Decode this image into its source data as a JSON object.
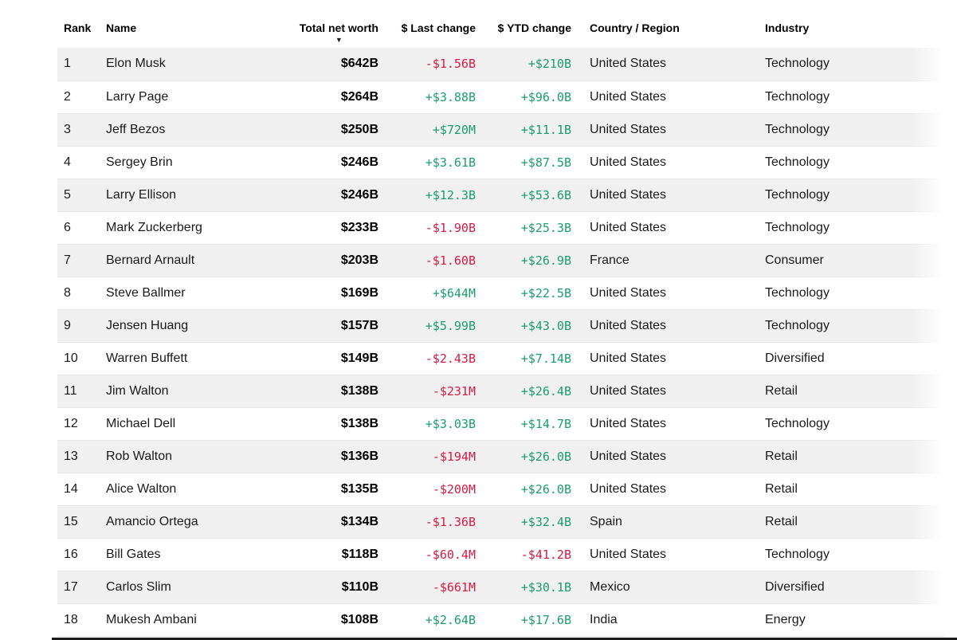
{
  "table": {
    "headers": {
      "rank": "Rank",
      "name": "Name",
      "net_worth": "Total net worth",
      "last_change": "$ Last change",
      "ytd_change": "$ YTD change",
      "country": "Country / Region",
      "industry": "Industry"
    },
    "sort": {
      "column": "net_worth",
      "direction": "desc",
      "icon": "▼"
    },
    "rows": [
      {
        "rank": "1",
        "name": "Elon Musk",
        "net_worth": "$642B",
        "last_change": "-$1.56B",
        "ytd_change": "+$210B",
        "country": "United States",
        "industry": "Technology"
      },
      {
        "rank": "2",
        "name": "Larry Page",
        "net_worth": "$264B",
        "last_change": "+$3.88B",
        "ytd_change": "+$96.0B",
        "country": "United States",
        "industry": "Technology"
      },
      {
        "rank": "3",
        "name": "Jeff Bezos",
        "net_worth": "$250B",
        "last_change": "+$720M",
        "ytd_change": "+$11.1B",
        "country": "United States",
        "industry": "Technology"
      },
      {
        "rank": "4",
        "name": "Sergey Brin",
        "net_worth": "$246B",
        "last_change": "+$3.61B",
        "ytd_change": "+$87.5B",
        "country": "United States",
        "industry": "Technology"
      },
      {
        "rank": "5",
        "name": "Larry Ellison",
        "net_worth": "$246B",
        "last_change": "+$12.3B",
        "ytd_change": "+$53.6B",
        "country": "United States",
        "industry": "Technology"
      },
      {
        "rank": "6",
        "name": "Mark Zuckerberg",
        "net_worth": "$233B",
        "last_change": "-$1.90B",
        "ytd_change": "+$25.3B",
        "country": "United States",
        "industry": "Technology"
      },
      {
        "rank": "7",
        "name": "Bernard Arnault",
        "net_worth": "$203B",
        "last_change": "-$1.60B",
        "ytd_change": "+$26.9B",
        "country": "France",
        "industry": "Consumer"
      },
      {
        "rank": "8",
        "name": "Steve Ballmer",
        "net_worth": "$169B",
        "last_change": "+$644M",
        "ytd_change": "+$22.5B",
        "country": "United States",
        "industry": "Technology"
      },
      {
        "rank": "9",
        "name": "Jensen Huang",
        "net_worth": "$157B",
        "last_change": "+$5.99B",
        "ytd_change": "+$43.0B",
        "country": "United States",
        "industry": "Technology"
      },
      {
        "rank": "10",
        "name": "Warren Buffett",
        "net_worth": "$149B",
        "last_change": "-$2.43B",
        "ytd_change": "+$7.14B",
        "country": "United States",
        "industry": "Diversified"
      },
      {
        "rank": "11",
        "name": "Jim Walton",
        "net_worth": "$138B",
        "last_change": "-$231M",
        "ytd_change": "+$26.4B",
        "country": "United States",
        "industry": "Retail"
      },
      {
        "rank": "12",
        "name": "Michael Dell",
        "net_worth": "$138B",
        "last_change": "+$3.03B",
        "ytd_change": "+$14.7B",
        "country": "United States",
        "industry": "Technology"
      },
      {
        "rank": "13",
        "name": "Rob Walton",
        "net_worth": "$136B",
        "last_change": "-$194M",
        "ytd_change": "+$26.0B",
        "country": "United States",
        "industry": "Retail"
      },
      {
        "rank": "14",
        "name": "Alice Walton",
        "net_worth": "$135B",
        "last_change": "-$200M",
        "ytd_change": "+$26.0B",
        "country": "United States",
        "industry": "Retail"
      },
      {
        "rank": "15",
        "name": "Amancio Ortega",
        "net_worth": "$134B",
        "last_change": "-$1.36B",
        "ytd_change": "+$32.4B",
        "country": "Spain",
        "industry": "Retail"
      },
      {
        "rank": "16",
        "name": "Bill Gates",
        "net_worth": "$118B",
        "last_change": "-$60.4M",
        "ytd_change": "-$41.2B",
        "country": "United States",
        "industry": "Technology"
      },
      {
        "rank": "17",
        "name": "Carlos Slim",
        "net_worth": "$110B",
        "last_change": "-$661M",
        "ytd_change": "+$30.1B",
        "country": "Mexico",
        "industry": "Diversified"
      },
      {
        "rank": "18",
        "name": "Mukesh Ambani",
        "net_worth": "$108B",
        "last_change": "+$2.64B",
        "ytd_change": "+$17.6B",
        "country": "India",
        "industry": "Energy"
      }
    ]
  },
  "colors": {
    "positive": "#1a9e6e",
    "negative": "#d81a44",
    "row_alt": "#f0f0f0",
    "divider": "#e6e6e6",
    "bottom_bar": "#1a1a1a"
  }
}
